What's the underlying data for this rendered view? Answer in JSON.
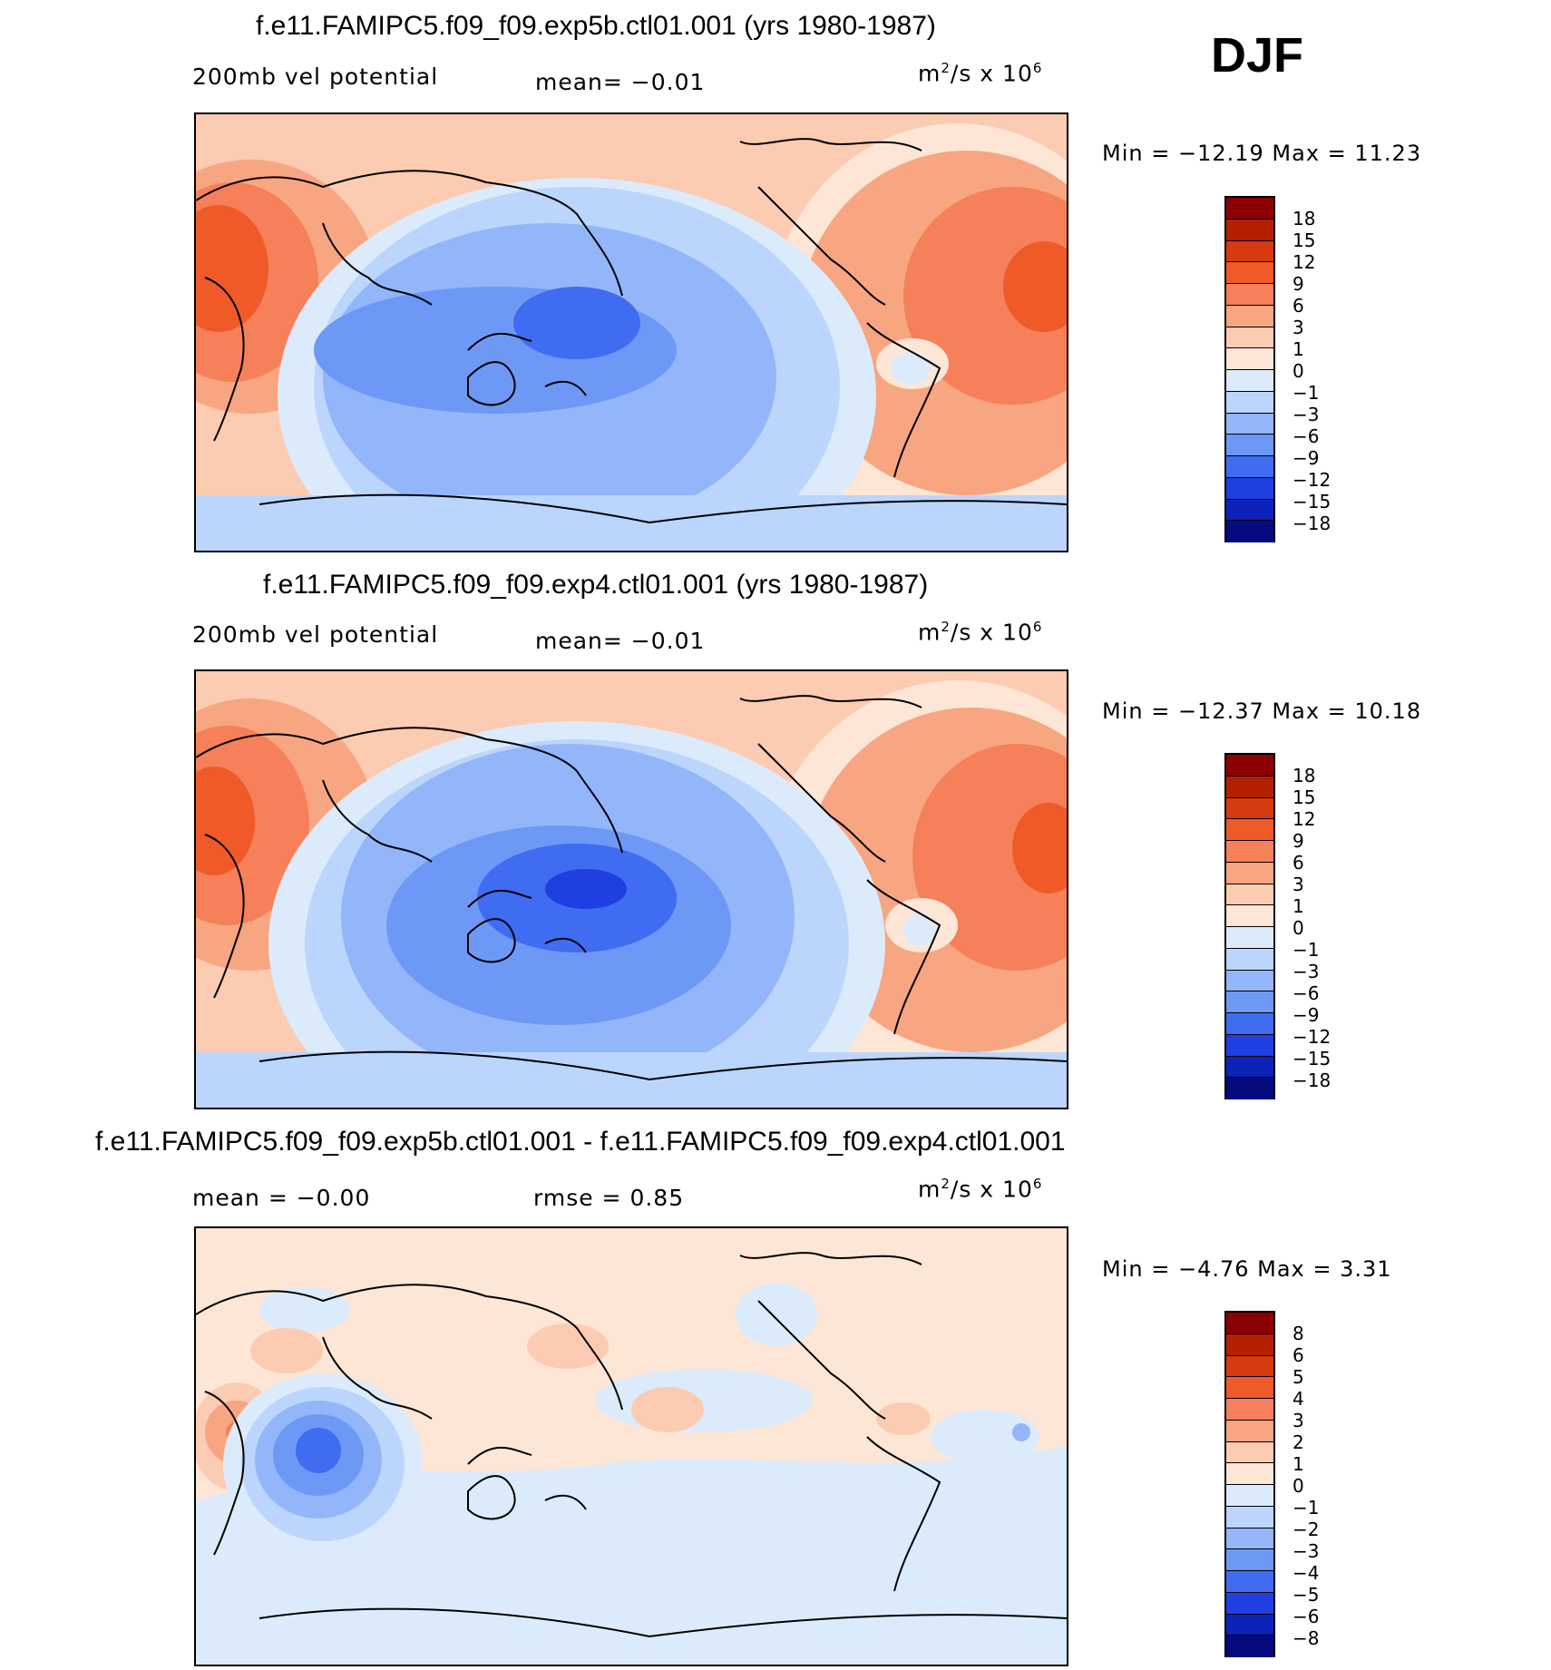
{
  "season": "DJF",
  "units": "m",
  "units_rest": "/s x 10",
  "units_sup1": "2",
  "units_sup2": "6",
  "panels": [
    {
      "title": "f.e11.FAMIPC5.f09_f09.exp5b.ctl01.001 (yrs 1980-1987)",
      "variable": "200mb vel potential",
      "mean": "mean=   −0.01",
      "minmax": "Min = −12.19 Max =   11.23"
    },
    {
      "title": "f.e11.FAMIPC5.f09_f09.exp4.ctl01.001 (yrs 1980-1987)",
      "variable": "200mb vel potential",
      "mean": "mean=   −0.01",
      "minmax": "Min = −12.37 Max =   10.18"
    },
    {
      "title": "f.e11.FAMIPC5.f09_f09.exp5b.ctl01.001 - f.e11.FAMIPC5.f09_f09.exp4.ctl01.001",
      "mean": "mean =   −0.00",
      "rmse": "rmse =    0.85",
      "minmax": "Min =   −4.76 Max =    3.31"
    }
  ],
  "colorbar_levels": [
    "18",
    "15",
    "12",
    "9",
    "6",
    "3",
    "1",
    "0",
    "−1",
    "−3",
    "−6",
    "−9",
    "−12",
    "−15",
    "−18"
  ],
  "diff_colorbar_levels": [
    "8",
    "6",
    "5",
    "4",
    "3",
    "2",
    "1",
    "0",
    "−1",
    "−2",
    "−3",
    "−4",
    "−5",
    "−6",
    "−8"
  ],
  "colorbar_colors": [
    "#8b0000",
    "#b32000",
    "#d63a10",
    "#f05a28",
    "#f5805a",
    "#f8a582",
    "#fbcbb2",
    "#fde6d6",
    "#dcebfb",
    "#bcd5fd",
    "#93b6fb",
    "#6e98f6",
    "#3f6cf1",
    "#1f3fe0",
    "#0d22b8",
    "#050a7e"
  ],
  "chart_data": [
    {
      "type": "heatmap",
      "title": "f.e11.FAMIPC5.f09_f09.exp5b.ctl01.001 (yrs 1980-1987)",
      "field": "200mb vel potential",
      "units": "m2/s x 10^6",
      "mean": -0.01,
      "min": -12.19,
      "max": 11.23,
      "contour_levels": [
        -18,
        -15,
        -12,
        -9,
        -6,
        -3,
        -1,
        0,
        1,
        3,
        6,
        9,
        12,
        15,
        18
      ]
    },
    {
      "type": "heatmap",
      "title": "f.e11.FAMIPC5.f09_f09.exp4.ctl01.001 (yrs 1980-1987)",
      "field": "200mb vel potential",
      "units": "m2/s x 10^6",
      "mean": -0.01,
      "min": -12.37,
      "max": 10.18,
      "contour_levels": [
        -18,
        -15,
        -12,
        -9,
        -6,
        -3,
        -1,
        0,
        1,
        3,
        6,
        9,
        12,
        15,
        18
      ]
    },
    {
      "type": "heatmap",
      "title": "f.e11.FAMIPC5.f09_f09.exp5b.ctl01.001 - f.e11.FAMIPC5.f09_f09.exp4.ctl01.001",
      "units": "m2/s x 10^6",
      "mean": -0.0,
      "rmse": 0.85,
      "min": -4.76,
      "max": 3.31,
      "contour_levels": [
        -8,
        -6,
        -5,
        -4,
        -3,
        -2,
        -1,
        0,
        1,
        2,
        3,
        4,
        5,
        6,
        8
      ]
    }
  ]
}
